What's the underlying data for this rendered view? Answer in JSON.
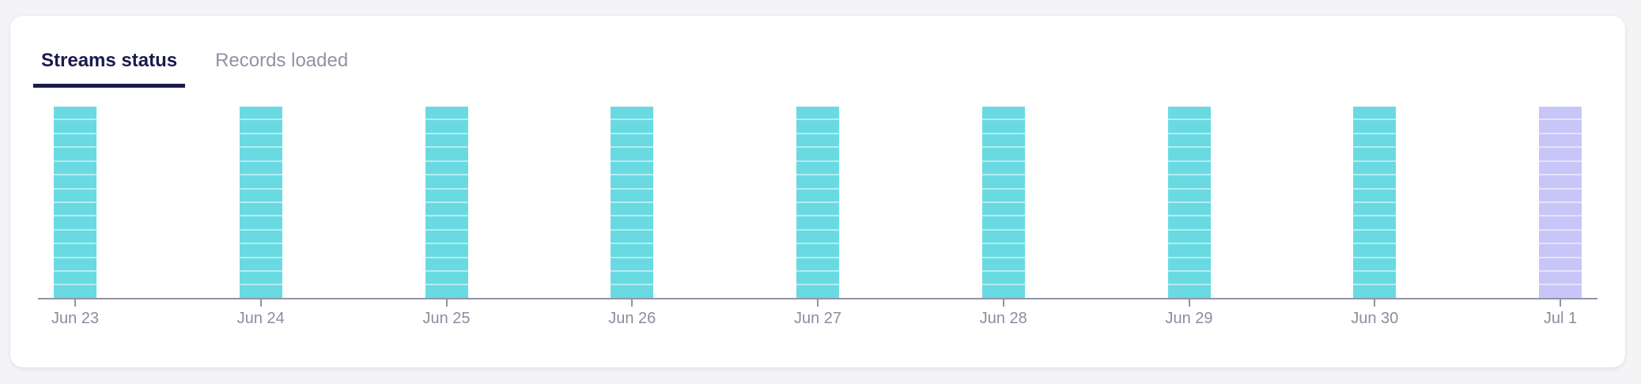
{
  "colors": {
    "page_bg": "#f4f4f7",
    "card_bg": "#ffffff",
    "tab_active": "#1b1b4e",
    "tab_underline": "#1b1b4e",
    "tab_inactive": "#9093a6"
  },
  "tabs": [
    {
      "label": "Streams status",
      "active": true
    },
    {
      "label": "Records loaded",
      "active": false
    }
  ],
  "chart_data": {
    "type": "bar",
    "variant": "stacked-daily-stream-status",
    "title": "",
    "xlabel": "",
    "ylabel": "",
    "grid": false,
    "legend": false,
    "categories": [
      "Jun 23",
      "Jun 24",
      "Jun 25",
      "Jun 26",
      "Jun 27",
      "Jun 28",
      "Jun 29",
      "Jun 30",
      "Jul 1"
    ],
    "segments_per_bar": 14,
    "series": [
      {
        "name": "stream-sync-segments",
        "values": [
          14,
          14,
          14,
          14,
          14,
          14,
          14,
          14,
          14
        ]
      }
    ],
    "bar_statuses": [
      "synced",
      "synced",
      "synced",
      "synced",
      "synced",
      "synced",
      "synced",
      "synced",
      "pending"
    ],
    "colors": {
      "synced": "#69dae2",
      "pending": "#c8c6f8",
      "separator": "rgba(255,255,255,0.5)",
      "axis": "#9193a7",
      "tick_label": "#8a8da0"
    }
  }
}
